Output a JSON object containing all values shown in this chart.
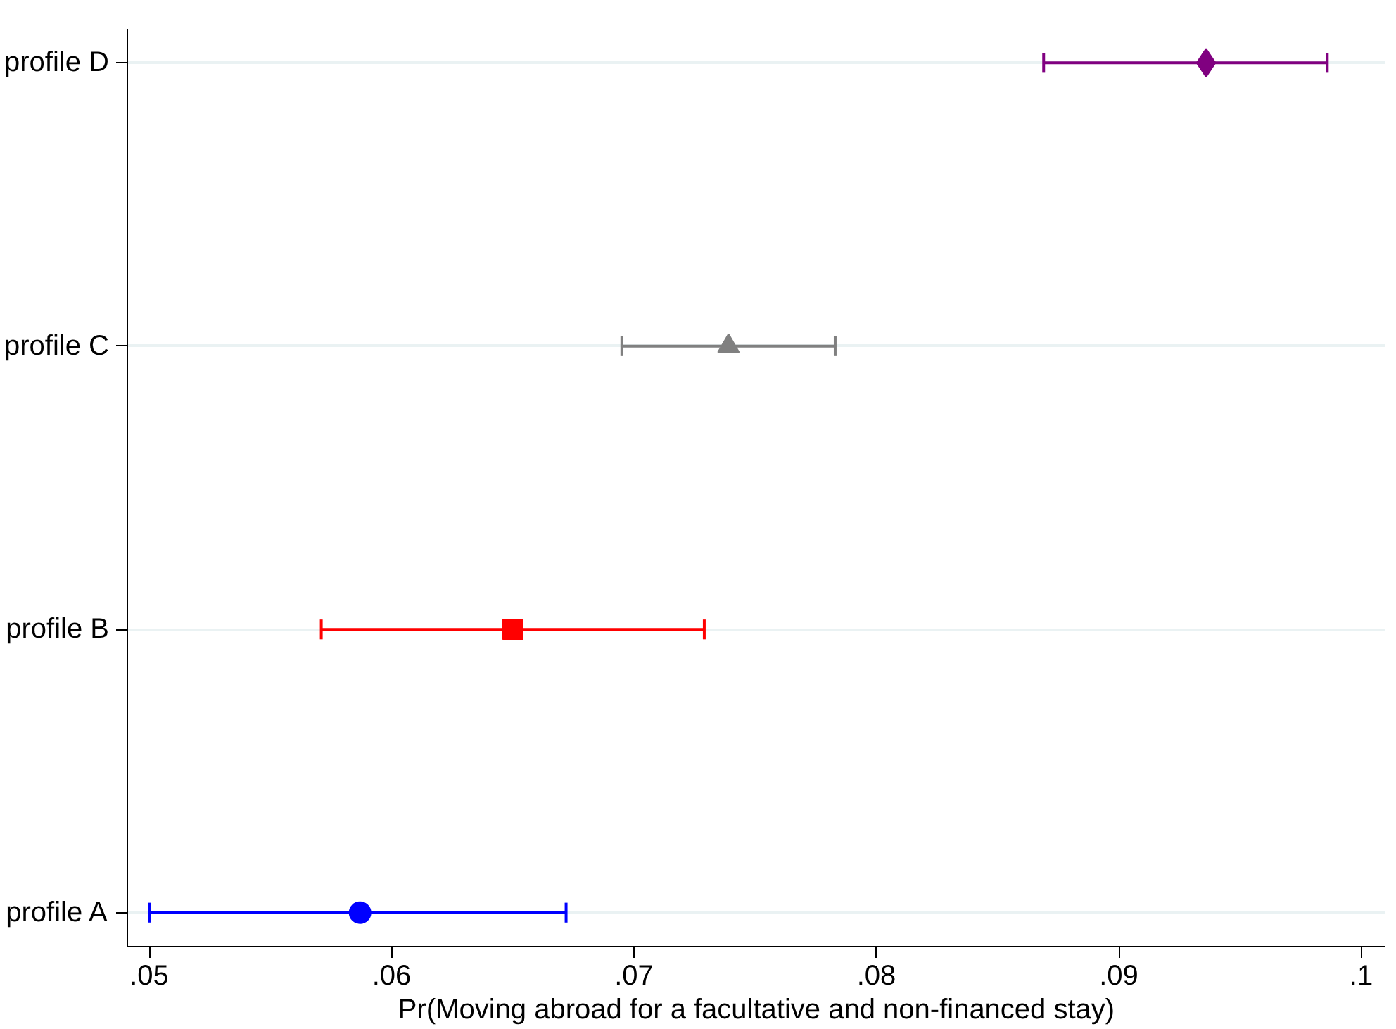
{
  "chart_data": {
    "type": "scatter",
    "orientation": "horizontal",
    "xlabel": "Pr(Moving abroad for a facultative and non-financed stay)",
    "categories": [
      "profile D",
      "profile C",
      "profile B",
      "profile A"
    ],
    "values": [
      0.0936,
      0.0739,
      0.065,
      0.0587
    ],
    "colors": [
      "#800080",
      "#808080",
      "#ff0000",
      "#0000ff"
    ],
    "errors": [
      [
        0.0869,
        0.0986
      ],
      [
        0.0695,
        0.0783
      ],
      [
        0.0571,
        0.0729
      ],
      [
        0.05,
        0.0672
      ]
    ],
    "xlim": [
      0.0491,
      0.101
    ],
    "xticks": [
      {
        "value": 0.05,
        "label": ".05"
      },
      {
        "value": 0.06,
        "label": ".06"
      },
      {
        "value": 0.07,
        "label": ".07"
      },
      {
        "value": 0.08,
        "label": ".08"
      },
      {
        "value": 0.09,
        "label": ".09"
      },
      {
        "value": 0.1,
        "label": ".1"
      }
    ],
    "grid": "y"
  }
}
